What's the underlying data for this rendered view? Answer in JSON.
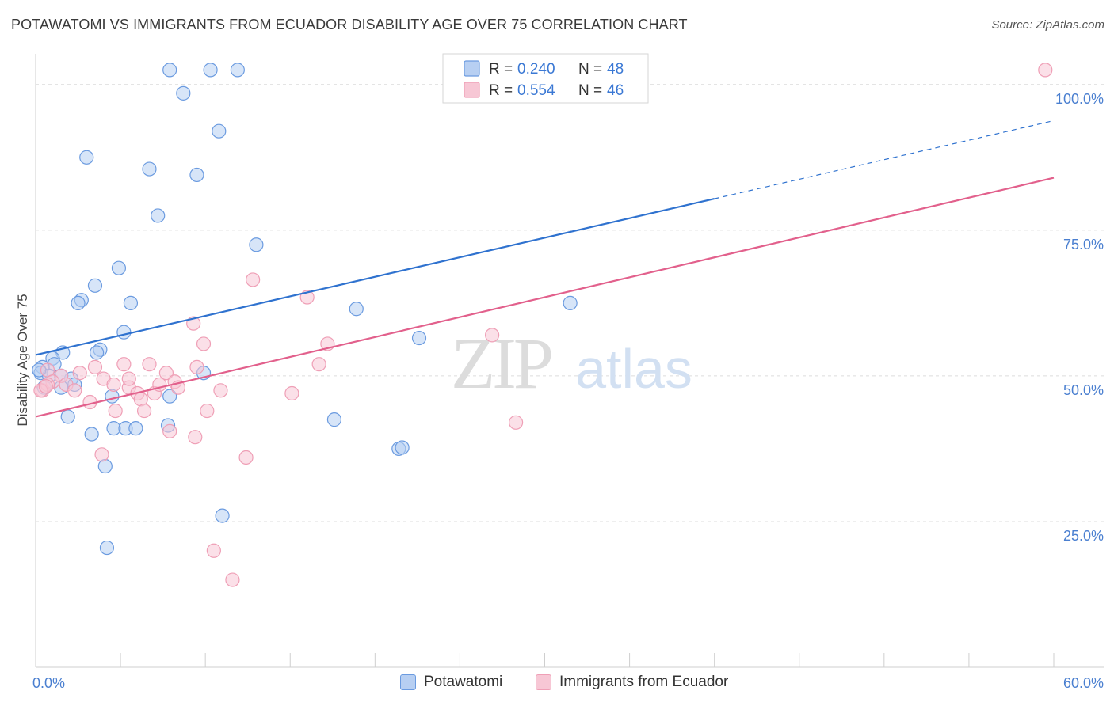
{
  "title": "POTAWATOMI VS IMMIGRANTS FROM ECUADOR DISABILITY AGE OVER 75 CORRELATION CHART",
  "source": "Source: ZipAtlas.com",
  "watermark": {
    "zip": "ZIP",
    "atlas": "atlas"
  },
  "chart_data": {
    "type": "scatter",
    "title": "POTAWATOMI VS IMMIGRANTS FROM ECUADOR DISABILITY AGE OVER 75 CORRELATION CHART",
    "xlabel": "",
    "ylabel": "Disability Age Over 75",
    "xlim": [
      0,
      60
    ],
    "ylim": [
      0,
      105
    ],
    "x_tick_labels": [
      {
        "value": 0,
        "label": "0.0%"
      },
      {
        "value": 60,
        "label": "60.0%"
      }
    ],
    "y_tick_labels": [
      {
        "value": 25,
        "label": "25.0%"
      },
      {
        "value": 50,
        "label": "50.0%"
      },
      {
        "value": 75,
        "label": "75.0%"
      },
      {
        "value": 100,
        "label": "100.0%"
      }
    ],
    "grid": true,
    "legend_position": "top-center",
    "series": [
      {
        "name": "Potawatomi",
        "color": "#6b9be0",
        "fill": "#b7cff2",
        "line_color": "#2f72cf",
        "R": "0.240",
        "N": "48",
        "trend": {
          "x0": 0,
          "y0": 53.6,
          "x1": 40,
          "y1": 80.4,
          "dash_to_x": 60,
          "dash_to_y": 93.8
        },
        "points": [
          [
            7.9,
            102.5
          ],
          [
            10.3,
            102.5
          ],
          [
            11.9,
            102.5
          ],
          [
            8.7,
            98.5
          ],
          [
            10.8,
            92.0
          ],
          [
            3.0,
            87.5
          ],
          [
            6.7,
            85.5
          ],
          [
            9.5,
            84.5
          ],
          [
            7.2,
            77.5
          ],
          [
            13.0,
            72.5
          ],
          [
            4.9,
            68.5
          ],
          [
            3.5,
            65.5
          ],
          [
            2.7,
            63.0
          ],
          [
            2.5,
            62.5
          ],
          [
            5.6,
            62.5
          ],
          [
            5.2,
            57.5
          ],
          [
            18.9,
            61.5
          ],
          [
            31.5,
            62.5
          ],
          [
            22.6,
            56.5
          ],
          [
            3.8,
            54.5
          ],
          [
            3.6,
            54.0
          ],
          [
            1.6,
            54.0
          ],
          [
            1.0,
            53.0
          ],
          [
            1.1,
            52.0
          ],
          [
            0.4,
            51.5
          ],
          [
            0.3,
            50.5
          ],
          [
            0.8,
            50.0
          ],
          [
            2.1,
            49.5
          ],
          [
            2.3,
            48.5
          ],
          [
            1.5,
            50.0
          ],
          [
            0.5,
            48.0
          ],
          [
            1.5,
            48.0
          ],
          [
            0.2,
            51.0
          ],
          [
            9.9,
            50.5
          ],
          [
            4.5,
            46.5
          ],
          [
            7.9,
            46.5
          ],
          [
            1.9,
            43.0
          ],
          [
            7.8,
            41.5
          ],
          [
            3.3,
            40.0
          ],
          [
            4.6,
            41.0
          ],
          [
            5.3,
            41.0
          ],
          [
            5.9,
            41.0
          ],
          [
            17.6,
            42.5
          ],
          [
            21.4,
            37.5
          ],
          [
            21.6,
            37.7
          ],
          [
            4.1,
            34.5
          ],
          [
            11.0,
            26.0
          ],
          [
            4.2,
            20.5
          ]
        ]
      },
      {
        "name": "Immigrants from Ecuador",
        "color": "#ef9fb6",
        "fill": "#f7c7d5",
        "line_color": "#e2608c",
        "R": "0.554",
        "N": "46",
        "trend": {
          "x0": 0,
          "y0": 43.0,
          "x1": 60,
          "y1": 84.0
        },
        "points": [
          [
            59.5,
            102.5
          ],
          [
            12.8,
            66.5
          ],
          [
            16.0,
            63.5
          ],
          [
            9.3,
            59.0
          ],
          [
            9.9,
            55.5
          ],
          [
            26.9,
            57.0
          ],
          [
            17.2,
            55.5
          ],
          [
            16.7,
            52.0
          ],
          [
            0.7,
            51.0
          ],
          [
            1.5,
            50.0
          ],
          [
            2.6,
            50.5
          ],
          [
            3.5,
            51.5
          ],
          [
            5.2,
            52.0
          ],
          [
            6.7,
            52.0
          ],
          [
            7.7,
            50.5
          ],
          [
            9.5,
            51.5
          ],
          [
            1.0,
            49.0
          ],
          [
            1.8,
            48.5
          ],
          [
            2.3,
            47.5
          ],
          [
            4.0,
            49.5
          ],
          [
            4.6,
            48.5
          ],
          [
            5.5,
            48.0
          ],
          [
            5.5,
            49.5
          ],
          [
            6.0,
            47.0
          ],
          [
            7.0,
            47.0
          ],
          [
            7.3,
            48.5
          ],
          [
            8.2,
            49.0
          ],
          [
            8.4,
            48.0
          ],
          [
            10.9,
            47.5
          ],
          [
            15.1,
            47.0
          ],
          [
            0.4,
            47.5
          ],
          [
            0.7,
            48.5
          ],
          [
            3.2,
            45.5
          ],
          [
            4.7,
            44.0
          ],
          [
            6.2,
            46.0
          ],
          [
            6.4,
            44.0
          ],
          [
            10.1,
            44.0
          ],
          [
            7.9,
            40.5
          ],
          [
            9.4,
            39.5
          ],
          [
            28.3,
            42.0
          ],
          [
            3.9,
            36.5
          ],
          [
            12.4,
            36.0
          ],
          [
            10.5,
            20.0
          ],
          [
            11.6,
            15.0
          ],
          [
            0.3,
            47.5
          ],
          [
            0.6,
            48.2
          ]
        ]
      }
    ]
  },
  "legend_bottom": [
    {
      "label": "Potawatomi"
    },
    {
      "label": "Immigrants from Ecuador"
    }
  ],
  "legend_top": {
    "r_label": "R = ",
    "n_label": "N = "
  }
}
